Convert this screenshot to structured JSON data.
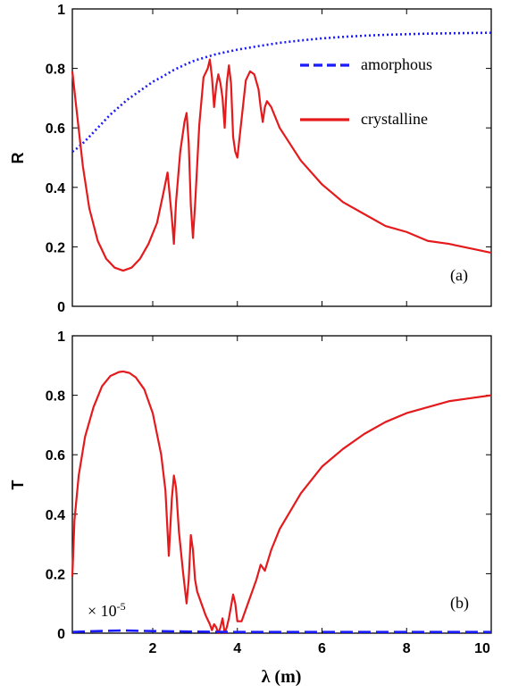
{
  "chart_data": [
    {
      "type": "line",
      "panel_label": "(a)",
      "ylabel": "R",
      "xlim": [
        0.1,
        10
      ],
      "ylim": [
        0,
        1
      ],
      "yticks": [
        "0",
        "0.2",
        "0.4",
        "0.6",
        "0.8",
        "1"
      ],
      "legend": {
        "placement": "top-right",
        "entries": [
          "amorphous",
          "crystalline"
        ]
      },
      "series": [
        {
          "name": "amorphous",
          "color": "#1a1aff",
          "style": "dotted",
          "x": [
            0.1,
            0.2,
            0.4,
            0.6,
            0.8,
            1.0,
            1.2,
            1.4,
            1.6,
            1.8,
            2.0,
            2.2,
            2.5,
            2.8,
            3.0,
            3.5,
            4.0,
            4.5,
            5.0,
            5.5,
            6.0,
            6.5,
            7.0,
            7.5,
            8.0,
            8.5,
            9.0,
            9.5,
            10.0
          ],
          "y": [
            0.52,
            0.53,
            0.555,
            0.585,
            0.615,
            0.645,
            0.67,
            0.695,
            0.715,
            0.735,
            0.755,
            0.77,
            0.795,
            0.815,
            0.827,
            0.848,
            0.863,
            0.875,
            0.886,
            0.894,
            0.901,
            0.906,
            0.91,
            0.913,
            0.915,
            0.917,
            0.918,
            0.919,
            0.92
          ]
        },
        {
          "name": "crystalline",
          "color": "#e41a1c",
          "style": "solid",
          "x": [
            0.1,
            0.2,
            0.35,
            0.5,
            0.7,
            0.9,
            1.1,
            1.3,
            1.5,
            1.7,
            1.9,
            2.1,
            2.25,
            2.35,
            2.45,
            2.5,
            2.55,
            2.65,
            2.75,
            2.8,
            2.85,
            2.9,
            2.95,
            3.0,
            3.1,
            3.2,
            3.3,
            3.35,
            3.4,
            3.45,
            3.5,
            3.55,
            3.6,
            3.65,
            3.7,
            3.75,
            3.8,
            3.85,
            3.9,
            3.95,
            4.0,
            4.1,
            4.2,
            4.3,
            4.4,
            4.5,
            4.55,
            4.6,
            4.65,
            4.7,
            4.8,
            5.0,
            5.5,
            6.0,
            6.5,
            7.0,
            7.5,
            8.0,
            8.5,
            9.0,
            9.5,
            10.0
          ],
          "y": [
            0.79,
            0.66,
            0.47,
            0.33,
            0.22,
            0.16,
            0.13,
            0.12,
            0.13,
            0.16,
            0.21,
            0.28,
            0.38,
            0.45,
            0.3,
            0.21,
            0.35,
            0.52,
            0.62,
            0.65,
            0.55,
            0.34,
            0.23,
            0.34,
            0.61,
            0.77,
            0.8,
            0.83,
            0.77,
            0.67,
            0.74,
            0.78,
            0.75,
            0.7,
            0.6,
            0.75,
            0.81,
            0.75,
            0.57,
            0.52,
            0.5,
            0.63,
            0.76,
            0.79,
            0.78,
            0.73,
            0.67,
            0.62,
            0.67,
            0.69,
            0.67,
            0.6,
            0.49,
            0.41,
            0.35,
            0.31,
            0.27,
            0.25,
            0.22,
            0.21,
            0.195,
            0.18
          ]
        }
      ]
    },
    {
      "type": "line",
      "panel_label": "(b)",
      "ylabel": "T",
      "xlabel": "λ (m)",
      "xlim": [
        0.1,
        10
      ],
      "ylim": [
        0,
        1
      ],
      "xticks": [
        "2",
        "4",
        "6",
        "8",
        "10"
      ],
      "yticks": [
        "0",
        "0.2",
        "0.4",
        "0.6",
        "0.8",
        "1"
      ],
      "annotation": {
        "text": "× 10",
        "exponent": "-5"
      },
      "series": [
        {
          "name": "crystalline",
          "color": "#e41a1c",
          "style": "solid",
          "x": [
            0.1,
            0.15,
            0.25,
            0.4,
            0.6,
            0.8,
            1.0,
            1.2,
            1.3,
            1.45,
            1.6,
            1.8,
            2.0,
            2.2,
            2.3,
            2.38,
            2.45,
            2.5,
            2.55,
            2.62,
            2.72,
            2.8,
            2.85,
            2.9,
            2.95,
            3.0,
            3.05,
            3.15,
            3.25,
            3.35,
            3.4,
            3.45,
            3.5,
            3.55,
            3.6,
            3.65,
            3.7,
            3.75,
            3.8,
            3.85,
            3.9,
            3.95,
            4.0,
            4.1,
            4.2,
            4.3,
            4.45,
            4.55,
            4.65,
            4.8,
            5.0,
            5.5,
            6.0,
            6.5,
            7.0,
            7.5,
            8.0,
            8.5,
            9.0,
            9.5,
            10.0
          ],
          "y": [
            0.19,
            0.38,
            0.53,
            0.66,
            0.76,
            0.83,
            0.865,
            0.878,
            0.88,
            0.875,
            0.86,
            0.82,
            0.74,
            0.6,
            0.48,
            0.26,
            0.45,
            0.53,
            0.49,
            0.34,
            0.2,
            0.1,
            0.18,
            0.33,
            0.28,
            0.18,
            0.14,
            0.1,
            0.06,
            0.03,
            0.01,
            0.03,
            0.02,
            0.0,
            0.02,
            0.05,
            0.0,
            0.02,
            0.05,
            0.09,
            0.13,
            0.1,
            0.04,
            0.04,
            0.08,
            0.12,
            0.18,
            0.23,
            0.21,
            0.28,
            0.35,
            0.47,
            0.56,
            0.62,
            0.67,
            0.71,
            0.74,
            0.76,
            0.78,
            0.79,
            0.8
          ]
        },
        {
          "name": "amorphous",
          "color": "#1a1aff",
          "style": "dashed",
          "x": [
            0.1,
            0.5,
            1.0,
            1.3,
            1.6,
            2.0,
            3.0,
            4.0,
            6.0,
            8.0,
            10.0
          ],
          "y": [
            0.004,
            0.006,
            0.008,
            0.009,
            0.008,
            0.007,
            0.005,
            0.004,
            0.004,
            0.004,
            0.004
          ]
        }
      ]
    }
  ]
}
